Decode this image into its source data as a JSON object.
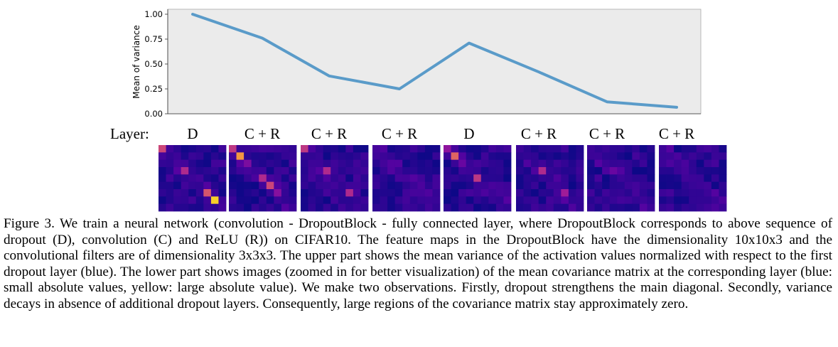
{
  "chart_data": {
    "type": "line",
    "ylabel": "Mean of variance",
    "ylim": [
      0,
      1.0
    ],
    "y_ticks": [
      "0.00",
      "0.25",
      "0.50",
      "0.75",
      "1.00"
    ],
    "x": [
      1,
      2,
      3,
      4,
      5,
      6,
      7,
      8
    ],
    "series": [
      {
        "values": [
          1.0,
          0.76,
          0.38,
          0.25,
          0.71,
          0.42,
          0.12,
          0.065
        ]
      }
    ],
    "line_color": "#5a9bc9",
    "plot_background": "#ebebeb",
    "grid": false
  },
  "layers": {
    "title": "Layer:",
    "labels": [
      "D",
      "C + R",
      "C + R",
      "C + R",
      "D",
      "C + R",
      "C + R",
      "C + R"
    ]
  },
  "covariance_panels": {
    "colormap": [
      "#0d0887",
      "#5b02a3",
      "#9a179b",
      "#cb4679",
      "#eb7852",
      "#fbb32f",
      "#f0f921"
    ],
    "colormap_note": "blue: small absolute values, yellow: large absolute value",
    "panels": [
      {
        "diag": [
          0.5,
          0.08,
          0.12,
          0.4,
          0.1,
          0.08,
          0.55,
          0.9,
          0.12
        ]
      },
      {
        "diag": [
          0.45,
          0.75,
          0.25,
          0.1,
          0.4,
          0.5,
          0.28,
          0.08,
          0.1
        ]
      },
      {
        "diag": [
          0.45,
          0.08,
          0.1,
          0.4,
          0.08,
          0.08,
          0.4,
          0.08,
          0.08
        ]
      },
      {
        "diag": [
          0.12,
          0.1,
          0.15,
          0.1,
          0.12,
          0.1,
          0.12,
          0.1,
          0.08
        ]
      },
      {
        "diag": [
          0.3,
          0.6,
          0.2,
          0.1,
          0.45,
          0.1,
          0.1,
          0.08,
          0.08
        ]
      },
      {
        "diag": [
          0.1,
          0.08,
          0.08,
          0.4,
          0.08,
          0.1,
          0.35,
          0.08,
          0.08
        ]
      },
      {
        "diag": [
          0.1,
          0.1,
          0.1,
          0.2,
          0.1,
          0.1,
          0.12,
          0.1,
          0.1
        ]
      },
      {
        "diag": [
          0.1,
          0.1,
          0.1,
          0.12,
          0.1,
          0.1,
          0.1,
          0.1,
          0.1
        ]
      }
    ]
  },
  "caption": "Figure 3. We train a neural network (convolution - DropoutBlock - fully connected layer, where DropoutBlock corresponds to above sequence of dropout (D), convolution (C) and ReLU (R)) on CIFAR10. The feature maps in the DropoutBlock have the dimensionality 10x10x3 and the convolutional filters are of dimensionality 3x3x3. The upper part shows the mean variance of the activation values normalized with respect to the first dropout layer (blue). The lower part shows images (zoomed in for better visualization) of the mean covariance matrix at the corresponding layer (blue: small absolute values, yellow: large absolute value). We make two observations. Firstly, dropout strengthens the main diagonal. Secondly, variance decays in absence of additional dropout layers. Consequently, large regions of the covariance matrix stay approximately zero."
}
